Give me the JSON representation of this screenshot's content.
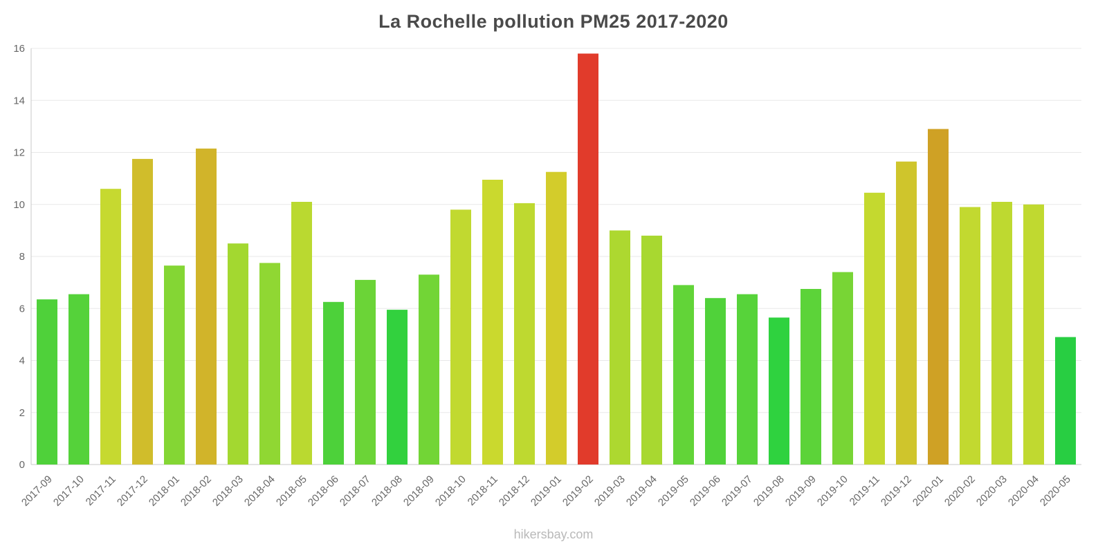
{
  "footer": {
    "text": "hikersbay.com"
  },
  "chart_data": {
    "type": "bar",
    "title": "La Rochelle pollution PM25 2017-2020",
    "xlabel": "",
    "ylabel": "",
    "ylim": [
      0,
      16
    ],
    "yticks": [
      0,
      2,
      4,
      6,
      8,
      10,
      12,
      14,
      16
    ],
    "grid": true,
    "legend": "none",
    "categories": [
      "2017-09",
      "2017-10",
      "2017-11",
      "2017-12",
      "2018-01",
      "2018-02",
      "2018-03",
      "2018-04",
      "2018-05",
      "2018-06",
      "2018-07",
      "2018-08",
      "2018-09",
      "2018-10",
      "2018-11",
      "2018-12",
      "2019-01",
      "2019-02",
      "2019-03",
      "2019-04",
      "2019-05",
      "2019-06",
      "2019-07",
      "2019-08",
      "2019-09",
      "2019-10",
      "2019-11",
      "2019-12",
      "2020-01",
      "2020-02",
      "2020-03",
      "2020-04",
      "2020-05"
    ],
    "values": [
      6.35,
      6.55,
      10.6,
      11.75,
      7.65,
      12.15,
      8.5,
      7.75,
      10.1,
      6.25,
      7.1,
      5.95,
      7.3,
      9.8,
      10.95,
      10.05,
      11.25,
      15.8,
      9.0,
      8.8,
      6.9,
      6.4,
      6.55,
      5.65,
      6.75,
      7.4,
      10.45,
      11.65,
      12.9,
      9.9,
      10.1,
      10.0,
      4.9
    ],
    "colors": [
      "#4fd13a",
      "#55d23a",
      "#c6d930",
      "#d0bd2b",
      "#84d634",
      "#d1b42a",
      "#a3d830",
      "#90d733",
      "#bad930",
      "#4dd13a",
      "#6bd437",
      "#32d13e",
      "#72d536",
      "#c1d930",
      "#cad92e",
      "#bed930",
      "#d3cc2b",
      "#e13b2b",
      "#add830",
      "#a8d830",
      "#62d438",
      "#50d23a",
      "#57d33a",
      "#2fd23f",
      "#5cd339",
      "#78d535",
      "#c4d92f",
      "#cfc52c",
      "#cfa125",
      "#c2d930",
      "#bed930",
      "#c0d930",
      "#28ce42"
    ],
    "axis_color": "#c9c9c9",
    "gridline_color": "#e8e8e8",
    "tick_label_color": "#666666"
  }
}
